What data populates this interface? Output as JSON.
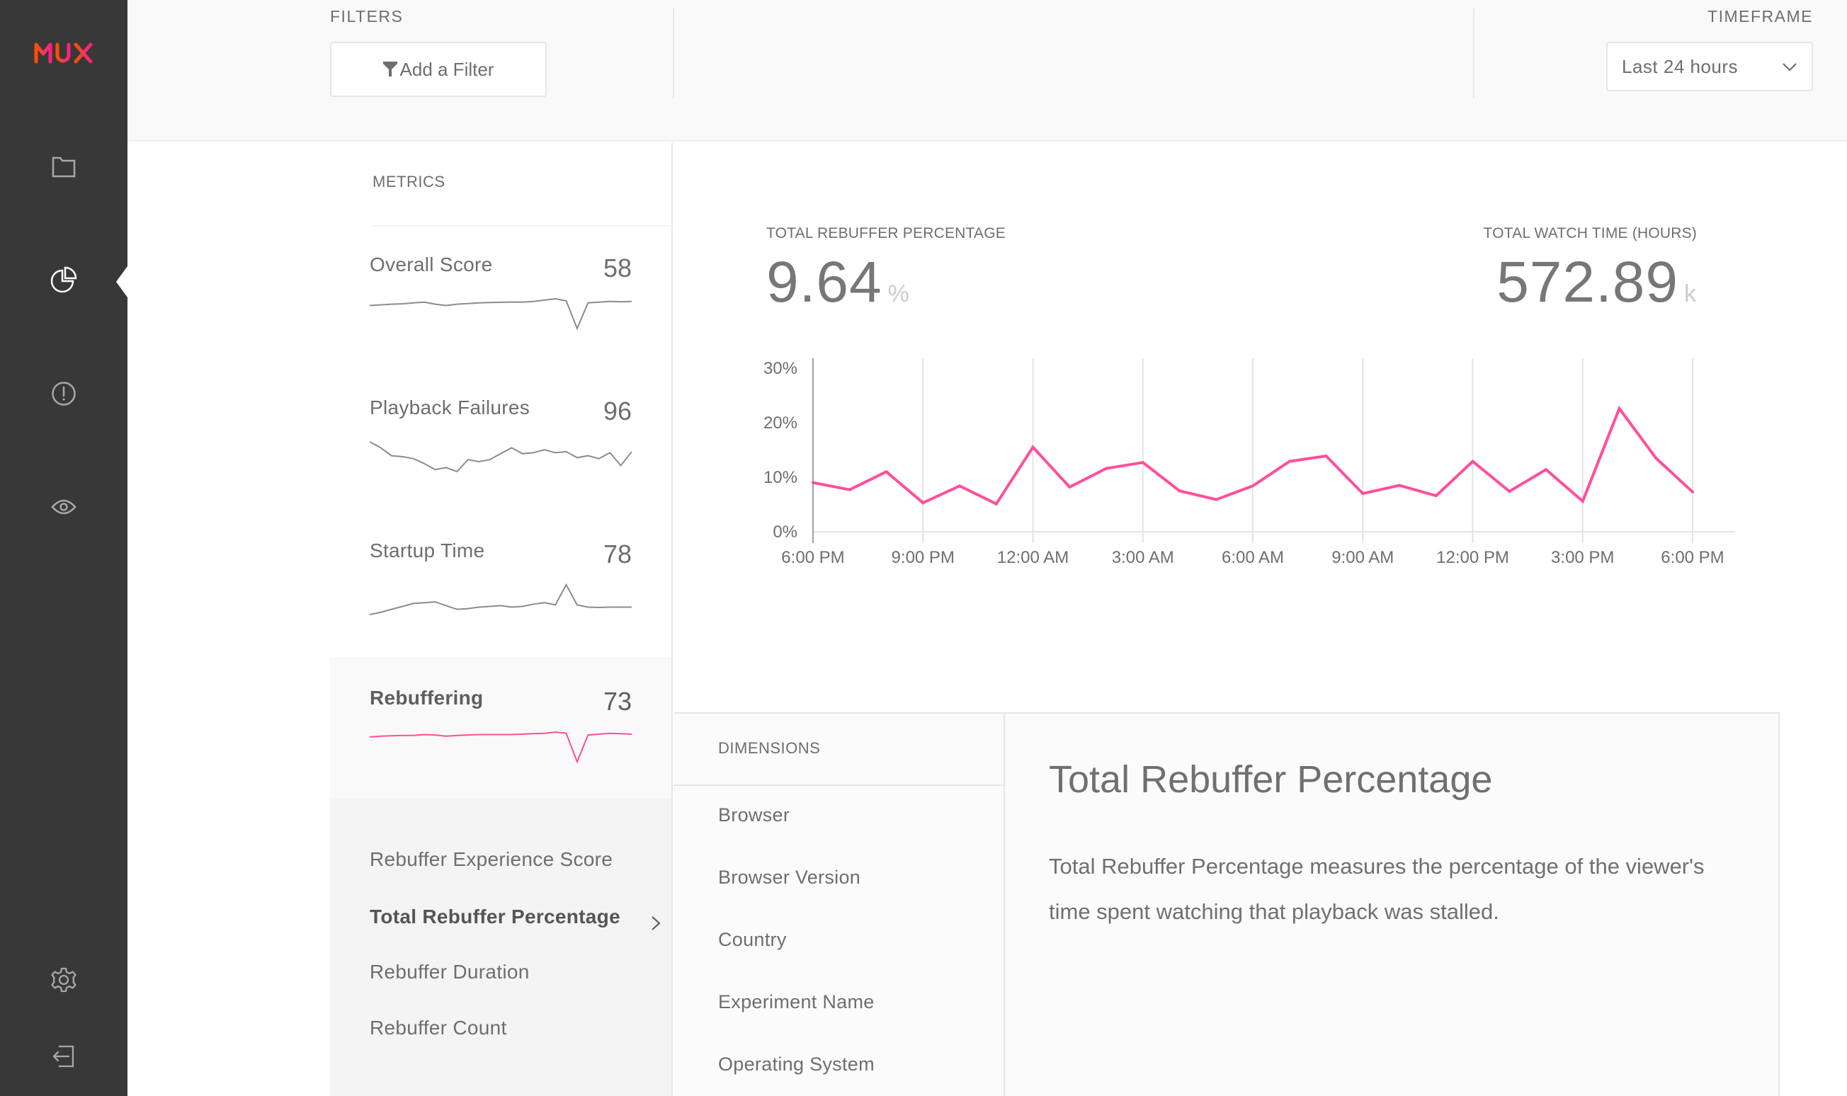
{
  "brand": {
    "logo_text": "MUX",
    "accent": "#ff4f9a",
    "logo_gradient": [
      "#ff4e00",
      "#ff1f7d"
    ]
  },
  "sidebar": {
    "items": [
      {
        "icon": "folder-icon",
        "label": "Properties"
      },
      {
        "icon": "pie-chart-icon",
        "label": "Metrics",
        "active": true
      },
      {
        "icon": "alert-icon",
        "label": "Alerts"
      },
      {
        "icon": "eye-icon",
        "label": "Views"
      },
      {
        "icon": "gear-icon",
        "label": "Settings"
      },
      {
        "icon": "logout-icon",
        "label": "Log out"
      }
    ]
  },
  "header": {
    "filters_label": "FILTERS",
    "add_filter_label": "Add a Filter",
    "timeframe_label": "TIMEFRAME",
    "timeframe_value": "Last 24 hours"
  },
  "metrics": {
    "title": "METRICS",
    "cards": [
      {
        "name": "Overall Score",
        "score": "58",
        "spark": [
          62,
          62.5,
          63,
          63.3,
          64,
          64.5,
          63,
          62,
          63,
          63.5,
          64,
          64.2,
          64.4,
          64.6,
          64.5,
          65,
          66,
          67,
          65.5,
          45,
          64,
          64.5,
          65,
          64.8,
          65
        ]
      },
      {
        "name": "Playback Failures",
        "score": "96",
        "spark": [
          96.6,
          96.3,
          95.9,
          95.85,
          95.75,
          95.5,
          95.2,
          95.3,
          95.1,
          95.7,
          95.6,
          95.7,
          96,
          96.3,
          96,
          96.05,
          96.2,
          96.05,
          96.1,
          95.8,
          95.9,
          95.75,
          96.05,
          95.4,
          96.1
        ]
      },
      {
        "name": "Startup Time",
        "score": "78",
        "spark": [
          76,
          76.3,
          76.7,
          77.1,
          77.5,
          77.6,
          77.7,
          77.2,
          76.7,
          76.8,
          77,
          77.1,
          77.2,
          77,
          77.1,
          77.4,
          77.6,
          77.3,
          80,
          77.3,
          77,
          76.95,
          77,
          77,
          77
        ]
      },
      {
        "name": "Rebuffering",
        "score": "73",
        "active": true,
        "spark": [
          73,
          73.2,
          73.3,
          73.4,
          73.4,
          73.6,
          73.5,
          73.2,
          73.4,
          73.5,
          73.6,
          73.6,
          73.6,
          73.6,
          73.7,
          73.8,
          73.9,
          74.2,
          73.9,
          67,
          73.5,
          73.7,
          73.9,
          73.8,
          73.7
        ]
      }
    ],
    "submetrics": [
      {
        "label": "Rebuffer Experience Score"
      },
      {
        "label": "Total Rebuffer Percentage",
        "active": true
      },
      {
        "label": "Rebuffer Duration"
      },
      {
        "label": "Rebuffer Count"
      }
    ]
  },
  "stats": {
    "primary": {
      "label": "TOTAL REBUFFER PERCENTAGE",
      "value": "9.64",
      "unit": "%"
    },
    "secondary": {
      "label": "TOTAL WATCH TIME (HOURS)",
      "value": "572.89",
      "unit": "k"
    }
  },
  "chart_data": {
    "type": "line",
    "title": "Total Rebuffer Percentage",
    "xlabel": "",
    "ylabel": "",
    "x_tick_labels": [
      "6:00 PM",
      "9:00 PM",
      "12:00 AM",
      "3:00 AM",
      "6:00 AM",
      "9:00 AM",
      "12:00 PM",
      "3:00 PM",
      "6:00 PM"
    ],
    "y_tick_labels": [
      "0%",
      "10%",
      "20%",
      "30%"
    ],
    "ylim": [
      0,
      30
    ],
    "x_hours_from_start": [
      0,
      1,
      2,
      3,
      4,
      5,
      6,
      7,
      8,
      9,
      10,
      11,
      12,
      13,
      14,
      15,
      16,
      17,
      18,
      19,
      20,
      21,
      22,
      23,
      24
    ],
    "series": [
      {
        "name": "Total Rebuffer Percentage",
        "color": "#ff4f9a",
        "values": [
          9.0,
          7.7,
          11.0,
          5.3,
          8.4,
          5.1,
          15.5,
          8.2,
          11.6,
          12.7,
          7.5,
          5.9,
          8.4,
          12.9,
          13.9,
          7.0,
          8.5,
          6.6,
          12.9,
          7.4,
          11.4,
          5.6,
          22.6,
          13.5,
          7.3
        ]
      }
    ],
    "grid": true,
    "legend": "none"
  },
  "dimensions": {
    "title": "DIMENSIONS",
    "items": [
      "Browser",
      "Browser Version",
      "Country",
      "Experiment Name",
      "Operating System"
    ]
  },
  "description": {
    "title": "Total Rebuffer Percentage",
    "text": "Total Rebuffer Percentage measures the percentage of the viewer's time spent watching that playback was stalled."
  }
}
